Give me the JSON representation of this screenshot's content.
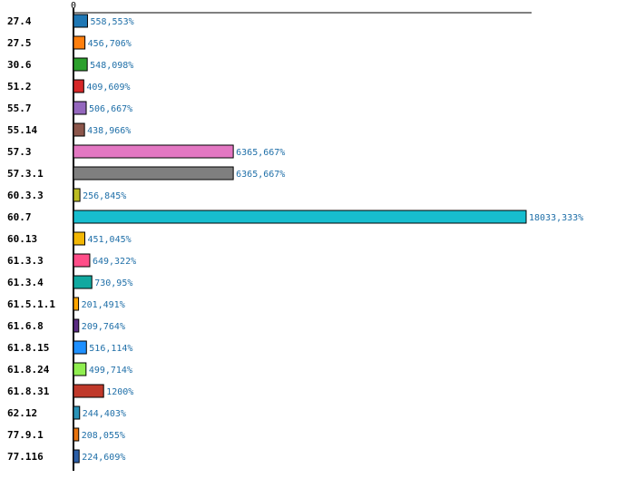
{
  "chart_data": {
    "type": "bar",
    "orientation": "horizontal",
    "title": "",
    "xlabel": "",
    "ylabel": "",
    "x_ticks": [
      "0"
    ],
    "xlim": [
      0,
      18033.333
    ],
    "grid": false,
    "legend": "none",
    "categories": [
      "27.4",
      "27.5",
      "30.6",
      "51.2",
      "55.7",
      "55.14",
      "57.3",
      "57.3.1",
      "60.3.3",
      "60.7",
      "60.13",
      "61.3.3",
      "61.3.4",
      "61.5.1.1",
      "61.6.8",
      "61.8.15",
      "61.8.24",
      "61.8.31",
      "62.12",
      "77.9.1",
      "77.116"
    ],
    "values": [
      558.553,
      456.706,
      548.098,
      409.609,
      506.667,
      438.966,
      6365.667,
      6365.667,
      256.845,
      18033.333,
      451.045,
      649.322,
      730.95,
      201.491,
      209.764,
      516.114,
      499.714,
      1200,
      244.403,
      208.055,
      224.609
    ],
    "value_labels": [
      "558,553%",
      "456,706%",
      "548,098%",
      "409,609%",
      "506,667%",
      "438,966%",
      "6365,667%",
      "6365,667%",
      "256,845%",
      "18033,333%",
      "451,045%",
      "649,322%",
      "730,95%",
      "201,491%",
      "209,764%",
      "516,114%",
      "499,714%",
      "1200%",
      "244,403%",
      "208,055%",
      "224,609%"
    ],
    "colors": [
      "#1f77b4",
      "#ff7f0e",
      "#2ca02c",
      "#d62728",
      "#9467bd",
      "#8c564b",
      "#e377c2",
      "#7f7f7f",
      "#bcbd22",
      "#17becf",
      "#f2b705",
      "#ff4d88",
      "#11a9a0",
      "#ffa500",
      "#5b2c83",
      "#1e90ff",
      "#90ee50",
      "#c0392b",
      "#2a93b8",
      "#e8730e",
      "#2c5fa8"
    ]
  }
}
